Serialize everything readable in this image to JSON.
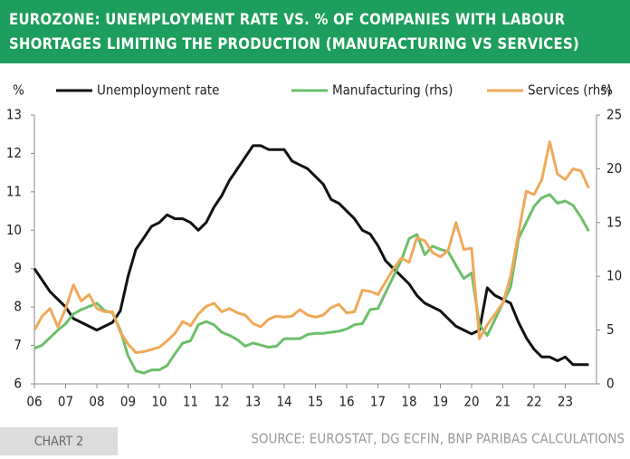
{
  "chart_data": {
    "type": "line",
    "title": "EUROZONE: UNEMPLOYMENT RATE VS. % OF COMPANIES WITH LABOUR SHORTAGES LIMITING THE PRODUCTION (MANUFACTURING VS SERVICES)",
    "ylabel": "%",
    "y2label": "%",
    "source": "SOURCE: EUROSTAT, DG ECFIN, BNP PARIBAS CALCULATIONS",
    "chart_label": "CHART 2",
    "x": [
      2006,
      2006.25,
      2006.5,
      2006.75,
      2007,
      2007.25,
      2007.5,
      2007.75,
      2008,
      2008.25,
      2008.5,
      2008.75,
      2009,
      2009.25,
      2009.5,
      2009.75,
      2010,
      2010.25,
      2010.5,
      2010.75,
      2011,
      2011.25,
      2011.5,
      2011.75,
      2012,
      2012.25,
      2012.5,
      2012.75,
      2013,
      2013.25,
      2013.5,
      2013.75,
      2014,
      2014.25,
      2014.5,
      2014.75,
      2015,
      2015.25,
      2015.5,
      2015.75,
      2016,
      2016.25,
      2016.5,
      2016.75,
      2017,
      2017.25,
      2017.5,
      2017.75,
      2018,
      2018.25,
      2018.5,
      2018.75,
      2019,
      2019.25,
      2019.5,
      2019.75,
      2020,
      2020.25,
      2020.5,
      2020.75,
      2021,
      2021.25,
      2021.5,
      2021.75,
      2022,
      2022.25,
      2022.5,
      2022.75,
      2023,
      2023.25,
      2023.5,
      2023.75
    ],
    "series": [
      {
        "name": "Unemployment rate",
        "color": "#111111",
        "axis": "y",
        "values": [
          9.0,
          8.7,
          8.4,
          8.2,
          8.0,
          7.7,
          7.6,
          7.5,
          7.4,
          7.5,
          7.6,
          7.9,
          8.8,
          9.5,
          9.8,
          10.1,
          10.2,
          10.4,
          10.3,
          10.3,
          10.2,
          10.0,
          10.2,
          10.6,
          10.9,
          11.3,
          11.6,
          11.9,
          12.2,
          12.2,
          12.1,
          12.1,
          12.1,
          11.8,
          11.7,
          11.6,
          11.4,
          11.2,
          10.8,
          10.7,
          10.5,
          10.3,
          10.0,
          9.9,
          9.6,
          9.2,
          9.0,
          8.8,
          8.6,
          8.3,
          8.1,
          8.0,
          7.9,
          7.7,
          7.5,
          7.4,
          7.3,
          7.4,
          8.5,
          8.3,
          8.2,
          8.1,
          7.6,
          7.2,
          6.9,
          6.7,
          6.7,
          6.6,
          6.7,
          6.5,
          6.5,
          6.5
        ]
      },
      {
        "name": "Manufacturing (rhs)",
        "color": "#6cbf6a",
        "axis": "y2",
        "values": [
          3.3,
          3.6,
          4.3,
          5.0,
          5.6,
          6.5,
          6.9,
          7.2,
          7.5,
          6.8,
          6.6,
          5.0,
          2.6,
          1.2,
          1.0,
          1.3,
          1.3,
          1.7,
          2.8,
          3.8,
          4.0,
          5.5,
          5.8,
          5.5,
          4.8,
          4.5,
          4.1,
          3.5,
          3.8,
          3.6,
          3.4,
          3.5,
          4.2,
          4.2,
          4.2,
          4.6,
          4.7,
          4.7,
          4.8,
          4.9,
          5.1,
          5.5,
          5.6,
          6.9,
          7.0,
          8.5,
          10.0,
          11.5,
          13.5,
          13.9,
          12.0,
          12.8,
          12.5,
          12.3,
          11.0,
          9.8,
          10.3,
          5.5,
          4.5,
          6.0,
          7.5,
          9.0,
          13.5,
          15.0,
          16.5,
          17.3,
          17.6,
          16.8,
          17.0,
          16.6,
          15.5,
          14.2
        ]
      },
      {
        "name": "Services (rhs)",
        "color": "#f0a95a",
        "axis": "y2",
        "values": [
          5.0,
          6.3,
          7.0,
          5.3,
          7.0,
          9.2,
          7.7,
          8.3,
          7.0,
          6.7,
          6.7,
          4.8,
          3.7,
          2.9,
          3.0,
          3.2,
          3.4,
          4.0,
          4.7,
          5.8,
          5.4,
          6.5,
          7.2,
          7.5,
          6.7,
          7.0,
          6.6,
          6.4,
          5.6,
          5.3,
          6.0,
          6.3,
          6.2,
          6.3,
          6.9,
          6.4,
          6.2,
          6.4,
          7.1,
          7.4,
          6.6,
          6.7,
          8.7,
          8.6,
          8.3,
          9.5,
          10.7,
          11.7,
          11.3,
          13.6,
          13.3,
          12.2,
          11.8,
          12.4,
          15.0,
          12.5,
          12.6,
          4.2,
          5.5,
          6.5,
          7.5,
          10.0,
          14.0,
          17.9,
          17.6,
          19.0,
          22.5,
          19.5,
          19.0,
          20.0,
          19.8,
          18.2
        ]
      }
    ],
    "xlim": [
      2006,
      2024
    ],
    "xticks": [
      {
        "value": 2006,
        "label": "06"
      },
      {
        "value": 2007,
        "label": "07"
      },
      {
        "value": 2008,
        "label": "08"
      },
      {
        "value": 2009,
        "label": "09"
      },
      {
        "value": 2010,
        "label": "10"
      },
      {
        "value": 2011,
        "label": "11"
      },
      {
        "value": 2012,
        "label": "12"
      },
      {
        "value": 2013,
        "label": "13"
      },
      {
        "value": 2014,
        "label": "14"
      },
      {
        "value": 2015,
        "label": "15"
      },
      {
        "value": 2016,
        "label": "16"
      },
      {
        "value": 2017,
        "label": "17"
      },
      {
        "value": 2018,
        "label": "18"
      },
      {
        "value": 2019,
        "label": "19"
      },
      {
        "value": 2020,
        "label": "20"
      },
      {
        "value": 2021,
        "label": "21"
      },
      {
        "value": 2022,
        "label": "22"
      },
      {
        "value": 2023,
        "label": "23"
      }
    ],
    "ylim": [
      6,
      13
    ],
    "yticks": [
      6,
      7,
      8,
      9,
      10,
      11,
      12,
      13
    ],
    "y2lim": [
      0,
      25
    ],
    "y2ticks": [
      0,
      5,
      10,
      15,
      20,
      25
    ]
  }
}
